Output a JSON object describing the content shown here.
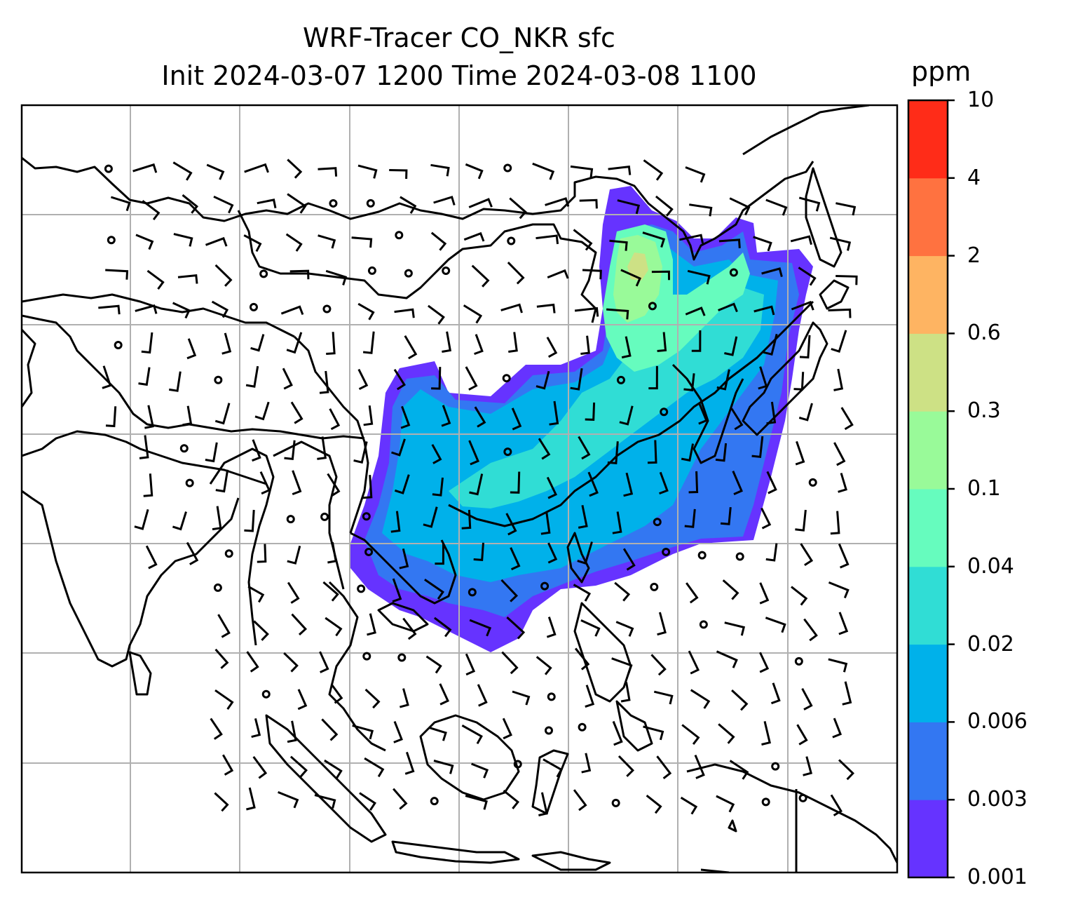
{
  "title": {
    "line1": "WRF-Tracer CO_NKR sfc",
    "line2": "Init 2024-03-07 1200 Time 2024-03-08 1100"
  },
  "colorbar": {
    "unit": "ppm",
    "levels": [
      "0.001",
      "0.003",
      "0.006",
      "0.02",
      "0.04",
      "0.1",
      "0.3",
      "0.6",
      "2",
      "4",
      "10"
    ],
    "colors": [
      "#6633ff",
      "#3377f2",
      "#00b1ea",
      "#30ddd5",
      "#66fcbe",
      "#99fa99",
      "#cde185",
      "#feb462",
      "#ff7240",
      "#ff2c18"
    ]
  },
  "map": {
    "land_outline_color": "#000000",
    "grid_color": "#b0b0b0",
    "grid_rows": 7,
    "grid_cols": 8,
    "wind_barb_color": "#000000"
  }
}
